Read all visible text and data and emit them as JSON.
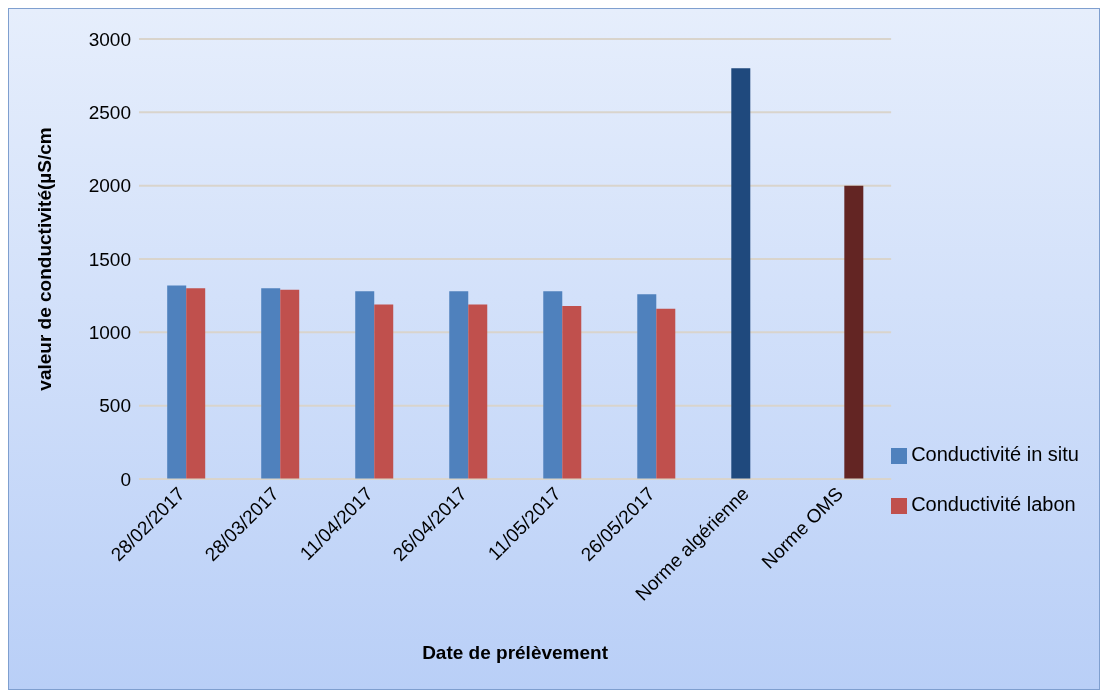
{
  "chart_data": {
    "type": "bar",
    "xlabel": "Date de prélèvement",
    "ylabel": "valeur de conductivité(µS/cm",
    "categories": [
      "28/02/2017",
      "28/03/2017",
      "11/04/2017",
      "26/04/2017",
      "11/05/2017",
      "26/05/2017",
      "Norme algérienne",
      "Norme OMS"
    ],
    "series": [
      {
        "name": "Conductivité in situ",
        "color": "#4f81bd",
        "colors": [
          "#4f81bd",
          "#4f81bd",
          "#4f81bd",
          "#4f81bd",
          "#4f81bd",
          "#4f81bd",
          "#1f497d",
          "#4f81bd"
        ],
        "values": [
          1320,
          1300,
          1280,
          1280,
          1280,
          1260,
          2800,
          null
        ]
      },
      {
        "name": "Conductivité labon",
        "color": "#c0504d",
        "colors": [
          "#c0504d",
          "#c0504d",
          "#c0504d",
          "#c0504d",
          "#c0504d",
          "#c0504d",
          "#c0504d",
          "#632523"
        ],
        "values": [
          1300,
          1290,
          1190,
          1190,
          1180,
          1160,
          null,
          2000
        ]
      }
    ],
    "ylim": [
      0,
      3000
    ],
    "yticks": [
      0,
      500,
      1000,
      1500,
      2000,
      2500,
      3000
    ],
    "grid": "y",
    "legend": "right"
  }
}
